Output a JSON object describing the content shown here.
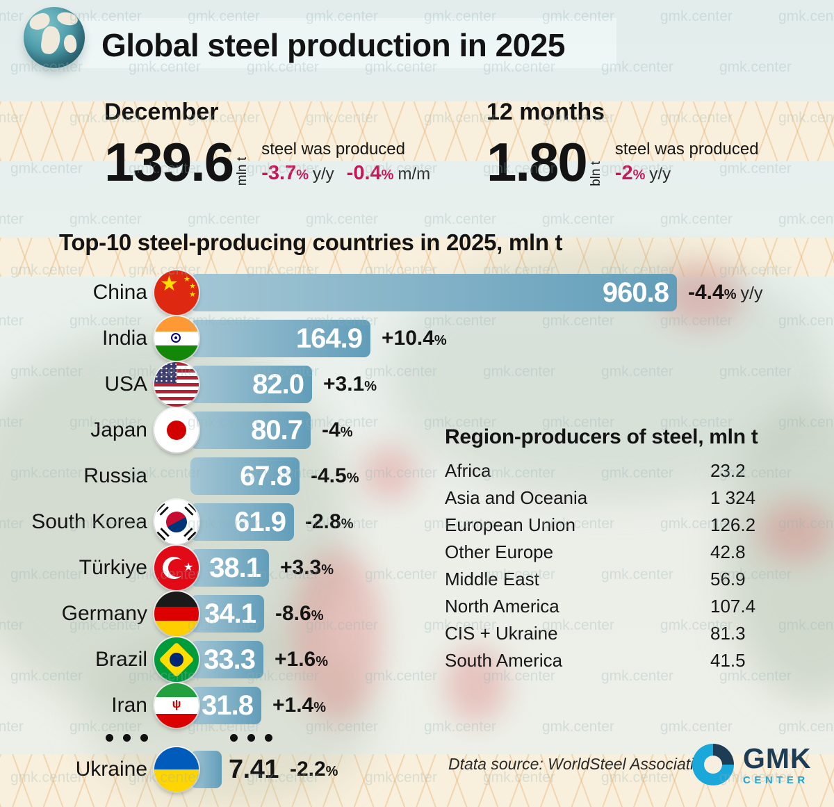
{
  "watermark": {
    "text": "gmk.center"
  },
  "header": {
    "title": "Global steel production in 2025"
  },
  "stats": [
    {
      "period": "December",
      "value": "139.6",
      "unit": "mln t",
      "desc": "steel was produced",
      "changes": [
        {
          "num": "-3.7",
          "pct": "%",
          "suffix": "y/y"
        },
        {
          "num": "-0.4",
          "pct": "%",
          "suffix": "m/m"
        }
      ]
    },
    {
      "period": "12 months",
      "value": "1.80",
      "unit": "bln t",
      "desc": "steel was produced",
      "changes": [
        {
          "num": "-2",
          "pct": "%",
          "suffix": "y/y"
        }
      ]
    }
  ],
  "chart_data": {
    "type": "bar",
    "title": "Top-10 steel-producing countries in 2025, mln t",
    "unit": "mln t",
    "orientation": "horizontal",
    "ellipsis_after_index": 9,
    "rows": [
      {
        "country": "China",
        "flag": "cn",
        "value": 960.8,
        "value_label": "960.8",
        "change": "-4.4",
        "change_suffix": "y/y"
      },
      {
        "country": "India",
        "flag": "in",
        "value": 164.9,
        "value_label": "164.9",
        "change": "+10.4",
        "change_suffix": ""
      },
      {
        "country": "USA",
        "flag": "us",
        "value": 82.0,
        "value_label": "82.0",
        "change": "+3.1",
        "change_suffix": ""
      },
      {
        "country": "Japan",
        "flag": "jp",
        "value": 80.7,
        "value_label": "80.7",
        "change": "-4",
        "change_suffix": ""
      },
      {
        "country": "Russia",
        "flag": null,
        "value": 67.8,
        "value_label": "67.8",
        "change": "-4.5",
        "change_suffix": ""
      },
      {
        "country": "South Korea",
        "flag": "kr",
        "value": 61.9,
        "value_label": "61.9",
        "change": "-2.8",
        "change_suffix": ""
      },
      {
        "country": "Türkiye",
        "flag": "tr",
        "value": 38.1,
        "value_label": "38.1",
        "change": "+3.3",
        "change_suffix": ""
      },
      {
        "country": "Germany",
        "flag": "de",
        "value": 34.1,
        "value_label": "34.1",
        "change": "-8.6",
        "change_suffix": ""
      },
      {
        "country": "Brazil",
        "flag": "br",
        "value": 33.3,
        "value_label": "33.3",
        "change": "+1.6",
        "change_suffix": ""
      },
      {
        "country": "Iran",
        "flag": "ir",
        "value": 31.8,
        "value_label": "31.8",
        "change": "+1.4",
        "change_suffix": ""
      },
      {
        "country": "Ukraine",
        "flag": "ua",
        "value": 7.41,
        "value_label": "7.41",
        "change": "-2.2",
        "change_suffix": "",
        "value_outside": true
      }
    ]
  },
  "regions": {
    "title": "Region-producers of steel, mln t",
    "rows": [
      {
        "name": "Africa",
        "value": "23.2"
      },
      {
        "name": "Asia and Oceania",
        "value": "1 324"
      },
      {
        "name": "European Union",
        "value": "126.2"
      },
      {
        "name": "Other Europe",
        "value": "42.8"
      },
      {
        "name": "Middle East",
        "value": "56.9"
      },
      {
        "name": "North America",
        "value": "107.4"
      },
      {
        "name": "CIS + Ukraine",
        "value": "81.3"
      },
      {
        "name": "South America",
        "value": "41.5"
      }
    ]
  },
  "footer": {
    "source": "Dtata source: WorldSteel Association",
    "logo": {
      "brand": "GMK",
      "sub": "CENTER"
    }
  },
  "colors": {
    "accent_crimson": "#c81658",
    "bar_gradient_start": "#a3c6d4",
    "bar_gradient_end": "#619db9",
    "logo_dark": "#1d3c56",
    "logo_blue": "#1aa7d9",
    "band_cream": "#f8efdc"
  }
}
